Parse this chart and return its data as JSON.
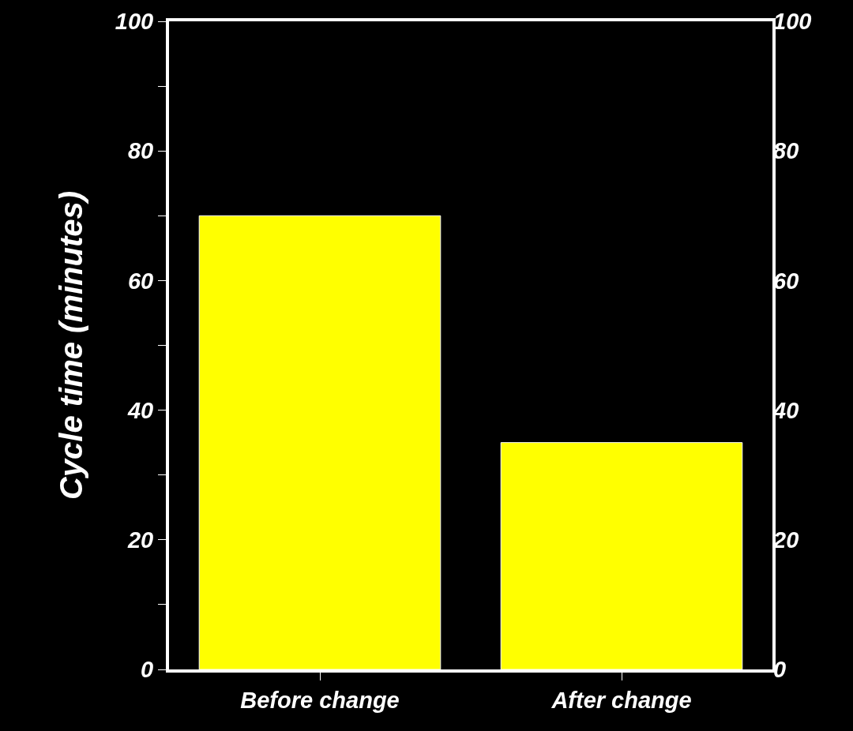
{
  "chart_data": {
    "type": "bar",
    "categories": [
      "Before change",
      "After change"
    ],
    "values": [
      70,
      35
    ],
    "color": "#ffff00",
    "ylabel": "Cycle time (minutes)",
    "ylim": [
      0,
      100
    ],
    "yticks": [
      0,
      {
        "value": 10,
        "label": null
      },
      20,
      {
        "value": 30,
        "label": null
      },
      40,
      {
        "value": 50,
        "label": null
      },
      60,
      {
        "value": 70,
        "label": null
      },
      80,
      {
        "value": 90,
        "label": null
      },
      100
    ],
    "y2lim": [
      0,
      100
    ],
    "y2ticks": [
      0,
      20,
      40,
      60,
      80,
      100
    ]
  }
}
